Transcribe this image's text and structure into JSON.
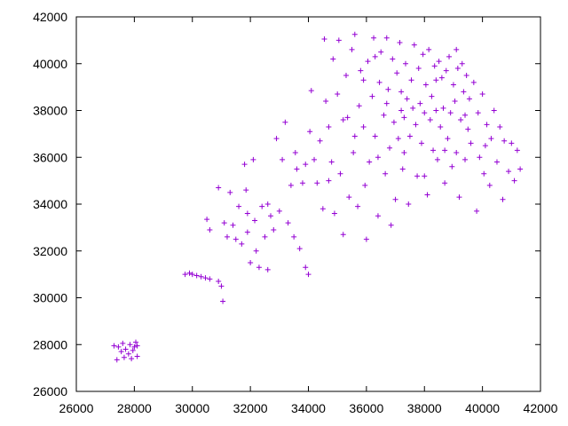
{
  "chart_data": {
    "type": "scatter",
    "title": "",
    "xlabel": "",
    "ylabel": "",
    "xlim": [
      26000,
      42000
    ],
    "ylim": [
      26000,
      42000
    ],
    "xticks": [
      "26000",
      "28000",
      "30000",
      "32000",
      "34000",
      "36000",
      "38000",
      "40000",
      "42000"
    ],
    "yticks": [
      "26000",
      "28000",
      "30000",
      "32000",
      "34000",
      "36000",
      "38000",
      "40000",
      "42000"
    ],
    "xtick_values": [
      26000,
      28000,
      30000,
      32000,
      34000,
      36000,
      38000,
      40000,
      42000
    ],
    "ytick_values": [
      26000,
      28000,
      30000,
      32000,
      34000,
      36000,
      38000,
      40000,
      42000
    ],
    "grid": false,
    "legend": "none",
    "marker": "plus",
    "colors": {
      "points": "#9400d3",
      "axes": "#000000"
    },
    "series": [
      {
        "values": [
          [
            27300,
            27950
          ],
          [
            27450,
            27900
          ],
          [
            27600,
            28050
          ],
          [
            27700,
            27800
          ],
          [
            27800,
            27600
          ],
          [
            27850,
            28000
          ],
          [
            27950,
            27750
          ],
          [
            28050,
            28100
          ],
          [
            28100,
            27500
          ],
          [
            27400,
            27350
          ],
          [
            27650,
            27450
          ],
          [
            27900,
            27400
          ],
          [
            28000,
            27900
          ],
          [
            27550,
            27700
          ],
          [
            28100,
            27950
          ],
          [
            29750,
            31000
          ],
          [
            29900,
            31050
          ],
          [
            30000,
            31000
          ],
          [
            30150,
            30950
          ],
          [
            30300,
            30900
          ],
          [
            30450,
            30850
          ],
          [
            30600,
            30800
          ],
          [
            30900,
            30700
          ],
          [
            31000,
            30500
          ],
          [
            31050,
            29850
          ],
          [
            30500,
            33350
          ],
          [
            30600,
            32900
          ],
          [
            30900,
            34700
          ],
          [
            31100,
            33200
          ],
          [
            31200,
            32600
          ],
          [
            31300,
            34500
          ],
          [
            31400,
            33100
          ],
          [
            31500,
            32500
          ],
          [
            31600,
            33900
          ],
          [
            31700,
            32300
          ],
          [
            31800,
            35700
          ],
          [
            31850,
            34600
          ],
          [
            31900,
            32800
          ],
          [
            32000,
            31500
          ],
          [
            32100,
            35900
          ],
          [
            32150,
            33300
          ],
          [
            32200,
            32000
          ],
          [
            32300,
            31300
          ],
          [
            32400,
            33900
          ],
          [
            32500,
            32600
          ],
          [
            32600,
            31200
          ],
          [
            32700,
            33500
          ],
          [
            32800,
            32900
          ],
          [
            32900,
            36800
          ],
          [
            33000,
            33700
          ],
          [
            33100,
            35900
          ],
          [
            33200,
            37500
          ],
          [
            33300,
            33200
          ],
          [
            33400,
            34800
          ],
          [
            33500,
            32600
          ],
          [
            33550,
            36200
          ],
          [
            33600,
            35500
          ],
          [
            33700,
            32100
          ],
          [
            33800,
            34900
          ],
          [
            33900,
            31300
          ],
          [
            34000,
            31000
          ],
          [
            34050,
            37100
          ],
          [
            34100,
            38850
          ],
          [
            34200,
            35900
          ],
          [
            34300,
            34900
          ],
          [
            34400,
            36700
          ],
          [
            34500,
            33800
          ],
          [
            34550,
            41050
          ],
          [
            34600,
            38400
          ],
          [
            34700,
            37300
          ],
          [
            34800,
            35800
          ],
          [
            34850,
            40200
          ],
          [
            34900,
            33600
          ],
          [
            35000,
            38700
          ],
          [
            35050,
            41000
          ],
          [
            35100,
            35300
          ],
          [
            35200,
            32700
          ],
          [
            35300,
            39500
          ],
          [
            35350,
            37700
          ],
          [
            35400,
            34300
          ],
          [
            35500,
            40600
          ],
          [
            35550,
            36200
          ],
          [
            35600,
            41250
          ],
          [
            35700,
            33900
          ],
          [
            35750,
            38200
          ],
          [
            35800,
            39700
          ],
          [
            35900,
            37300
          ],
          [
            35950,
            34800
          ],
          [
            36000,
            32500
          ],
          [
            36050,
            40100
          ],
          [
            36100,
            35800
          ],
          [
            36200,
            38600
          ],
          [
            36250,
            41100
          ],
          [
            36300,
            36900
          ],
          [
            36400,
            33500
          ],
          [
            36450,
            39200
          ],
          [
            36500,
            40500
          ],
          [
            36600,
            37800
          ],
          [
            36650,
            35300
          ],
          [
            36700,
            41100
          ],
          [
            36750,
            38900
          ],
          [
            36800,
            36400
          ],
          [
            36850,
            33100
          ],
          [
            36900,
            40200
          ],
          [
            36950,
            37500
          ],
          [
            37000,
            34200
          ],
          [
            37050,
            39600
          ],
          [
            37100,
            36800
          ],
          [
            37150,
            40900
          ],
          [
            37200,
            38000
          ],
          [
            37250,
            35500
          ],
          [
            37300,
            37700
          ],
          [
            37350,
            40000
          ],
          [
            37400,
            38500
          ],
          [
            37450,
            34000
          ],
          [
            37500,
            36900
          ],
          [
            37550,
            39300
          ],
          [
            37600,
            38100
          ],
          [
            37650,
            40800
          ],
          [
            37700,
            37400
          ],
          [
            37750,
            35200
          ],
          [
            37800,
            39800
          ],
          [
            37850,
            38300
          ],
          [
            37900,
            36600
          ],
          [
            37950,
            40400
          ],
          [
            38000,
            37900
          ],
          [
            38050,
            39100
          ],
          [
            38100,
            34400
          ],
          [
            38150,
            40600
          ],
          [
            38200,
            37600
          ],
          [
            38250,
            38600
          ],
          [
            38300,
            36300
          ],
          [
            38350,
            39900
          ],
          [
            38400,
            38000
          ],
          [
            38450,
            35900
          ],
          [
            38500,
            40100
          ],
          [
            38550,
            37300
          ],
          [
            38600,
            39400
          ],
          [
            38650,
            38100
          ],
          [
            38700,
            34900
          ],
          [
            38750,
            39700
          ],
          [
            38800,
            36800
          ],
          [
            38850,
            40300
          ],
          [
            38900,
            37900
          ],
          [
            38950,
            35600
          ],
          [
            39000,
            39100
          ],
          [
            39050,
            38400
          ],
          [
            39100,
            36200
          ],
          [
            39150,
            39800
          ],
          [
            39200,
            34300
          ],
          [
            39250,
            37600
          ],
          [
            39300,
            40000
          ],
          [
            39350,
            38800
          ],
          [
            39400,
            35900
          ],
          [
            39450,
            39500
          ],
          [
            39500,
            37200
          ],
          [
            39550,
            38500
          ],
          [
            39600,
            36600
          ],
          [
            39700,
            39200
          ],
          [
            39800,
            33700
          ],
          [
            39850,
            37900
          ],
          [
            39900,
            36000
          ],
          [
            40000,
            38700
          ],
          [
            40050,
            35300
          ],
          [
            40150,
            37400
          ],
          [
            40250,
            34800
          ],
          [
            40300,
            36800
          ],
          [
            40400,
            38000
          ],
          [
            40500,
            35800
          ],
          [
            40600,
            37300
          ],
          [
            40700,
            34200
          ],
          [
            40750,
            36700
          ],
          [
            40900,
            35400
          ],
          [
            41000,
            36600
          ],
          [
            41100,
            35000
          ],
          [
            41200,
            36300
          ],
          [
            41300,
            35500
          ],
          [
            35200,
            37600
          ],
          [
            35900,
            39300
          ],
          [
            36700,
            38300
          ],
          [
            37300,
            36200
          ],
          [
            38000,
            35200
          ],
          [
            38700,
            36300
          ],
          [
            39400,
            37800
          ],
          [
            40100,
            36500
          ],
          [
            34700,
            35000
          ],
          [
            33900,
            35700
          ],
          [
            32600,
            34000
          ],
          [
            31900,
            33600
          ],
          [
            35600,
            36900
          ],
          [
            36400,
            36000
          ],
          [
            37200,
            38800
          ],
          [
            38400,
            39300
          ],
          [
            39100,
            40600
          ],
          [
            36300,
            40300
          ]
        ]
      }
    ]
  }
}
